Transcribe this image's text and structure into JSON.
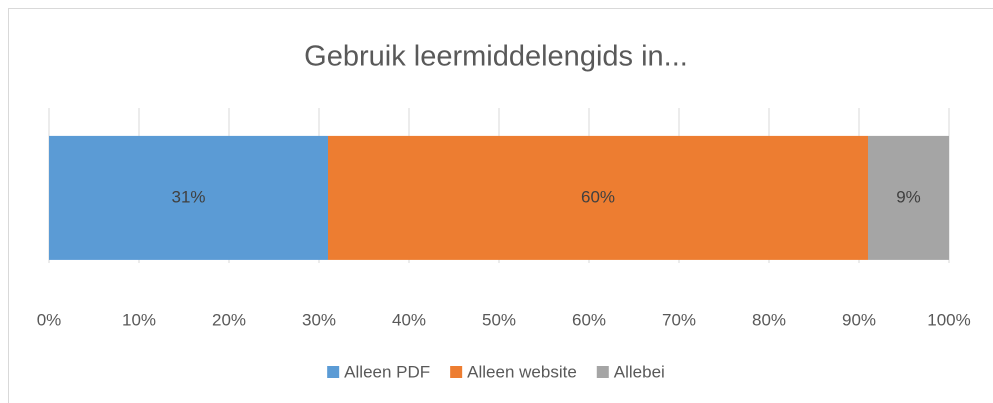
{
  "chart_data": {
    "type": "stacked_bar_horizontal",
    "title": "Gebruik leermiddelengids in...",
    "categories": [
      null
    ],
    "series": [
      {
        "name": "Alleen PDF",
        "color": "#5b9bd5",
        "values": [
          31
        ],
        "value_labels": [
          "31%"
        ]
      },
      {
        "name": "Alleen website",
        "color": "#ed7d31",
        "values": [
          60
        ],
        "value_labels": [
          "60%"
        ]
      },
      {
        "name": "Allebei",
        "color": "#a5a5a5",
        "values": [
          9
        ],
        "value_labels": [
          "9%"
        ]
      }
    ],
    "xlim": [
      0,
      100
    ],
    "xticks": [
      {
        "value": 0,
        "label": "0%"
      },
      {
        "value": 10,
        "label": "10%"
      },
      {
        "value": 20,
        "label": "20%"
      },
      {
        "value": 30,
        "label": "30%"
      },
      {
        "value": 40,
        "label": "40%"
      },
      {
        "value": 50,
        "label": "50%"
      },
      {
        "value": 60,
        "label": "60%"
      },
      {
        "value": 70,
        "label": "70%"
      },
      {
        "value": 80,
        "label": "80%"
      },
      {
        "value": 90,
        "label": "90%"
      },
      {
        "value": 100,
        "label": "100%"
      }
    ],
    "grid": true,
    "legend": "bottom"
  }
}
